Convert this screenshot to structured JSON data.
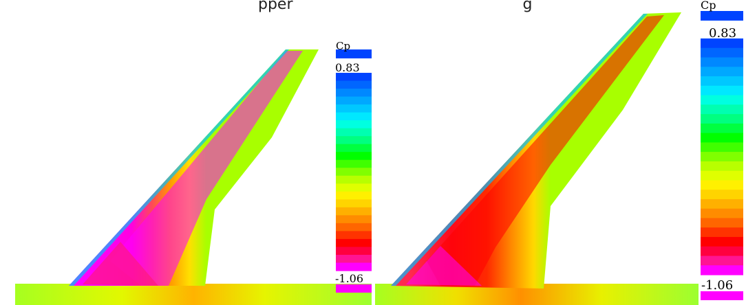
{
  "caption_fragment": "pper",
  "caption_fragment_2": "g",
  "panels": [
    {
      "colorbar": {
        "title": "Cp",
        "max_label": "0.83",
        "min_label": "-1.06"
      }
    },
    {
      "colorbar": {
        "title": "Cp",
        "max_label": "0.83",
        "min_label": "-1.06"
      }
    }
  ],
  "colors": {
    "scale": [
      "#ff00ff",
      "#ff1493",
      "#ff0040",
      "#ff0000",
      "#ff3300",
      "#ff6600",
      "#ff8c00",
      "#ffb000",
      "#ffd400",
      "#fff000",
      "#e0ff00",
      "#b8ff00",
      "#80ff00",
      "#40ff00",
      "#00ff00",
      "#00ff40",
      "#00ff80",
      "#00ffb0",
      "#00ffe0",
      "#00e8ff",
      "#00c8ff",
      "#00a8ff",
      "#0088ff",
      "#0066ff",
      "#0044ff"
    ]
  }
}
